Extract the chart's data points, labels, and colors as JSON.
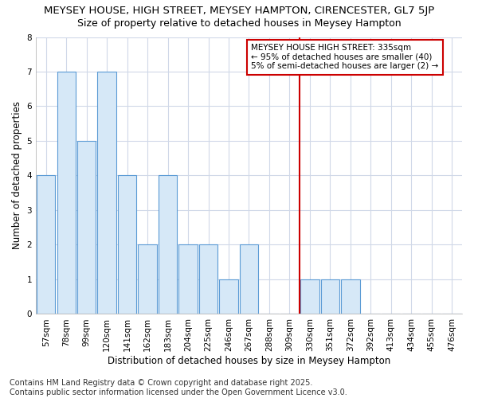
{
  "title1": "MEYSEY HOUSE, HIGH STREET, MEYSEY HAMPTON, CIRENCESTER, GL7 5JP",
  "title2": "Size of property relative to detached houses in Meysey Hampton",
  "xlabel": "Distribution of detached houses by size in Meysey Hampton",
  "ylabel": "Number of detached properties",
  "categories": [
    "57sqm",
    "78sqm",
    "99sqm",
    "120sqm",
    "141sqm",
    "162sqm",
    "183sqm",
    "204sqm",
    "225sqm",
    "246sqm",
    "267sqm",
    "288sqm",
    "309sqm",
    "330sqm",
    "351sqm",
    "372sqm",
    "392sqm",
    "413sqm",
    "434sqm",
    "455sqm",
    "476sqm"
  ],
  "values": [
    4,
    7,
    5,
    7,
    4,
    2,
    4,
    2,
    2,
    1,
    2,
    0,
    0,
    1,
    1,
    1,
    0,
    0,
    0,
    0,
    0
  ],
  "bar_color": "#d6e8f7",
  "bar_edge_color": "#5b9bd5",
  "vline_index": 13,
  "vline_color": "#cc0000",
  "annotation_text": "MEYSEY HOUSE HIGH STREET: 335sqm\n← 95% of detached houses are smaller (40)\n5% of semi-detached houses are larger (2) →",
  "annotation_box_edge_color": "#cc0000",
  "footer": "Contains HM Land Registry data © Crown copyright and database right 2025.\nContains public sector information licensed under the Open Government Licence v3.0.",
  "ylim": [
    0,
    8
  ],
  "yticks": [
    0,
    1,
    2,
    3,
    4,
    5,
    6,
    7,
    8
  ],
  "bg_color": "#ffffff",
  "grid_color": "#d0d8e8",
  "title1_fontsize": 9.5,
  "title2_fontsize": 9,
  "axis_label_fontsize": 8.5,
  "tick_fontsize": 7.5,
  "annotation_fontsize": 7.5,
  "footer_fontsize": 7
}
